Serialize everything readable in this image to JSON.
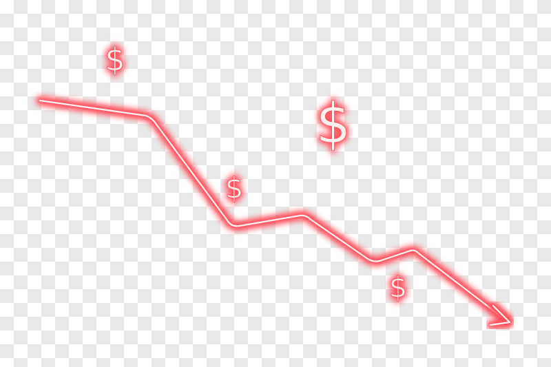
{
  "graphic": {
    "subject": "declining-trend-arrow",
    "neon_color": "#ff4f5a",
    "core_color": "#fff4f4",
    "background_pattern": "transparency-checkerboard",
    "symbols": [
      {
        "glyph": "$",
        "size": "medium"
      },
      {
        "glyph": "$",
        "size": "large"
      },
      {
        "glyph": "$",
        "size": "medium"
      },
      {
        "glyph": "$",
        "size": "medium"
      }
    ]
  }
}
